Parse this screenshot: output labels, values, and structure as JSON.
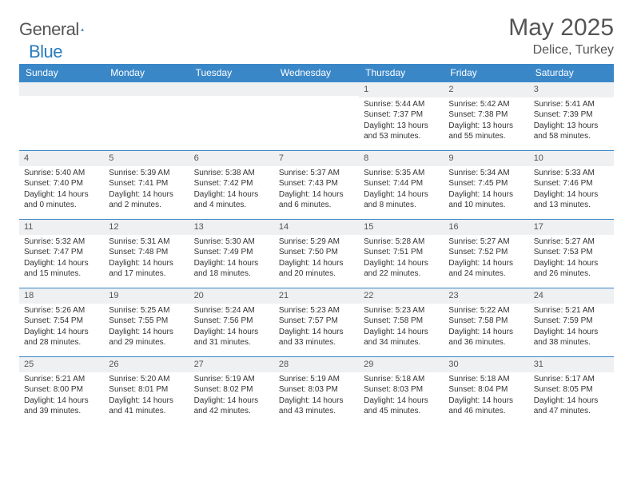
{
  "logo": {
    "text1": "General",
    "text2": "Blue"
  },
  "title": "May 2025",
  "location": "Delice, Turkey",
  "colors": {
    "header_bg": "#3a87c8",
    "header_text": "#ffffff",
    "daynum_bg": "#eef0f2",
    "border": "#3a87c8",
    "body_text": "#333333",
    "title_text": "#555555"
  },
  "typography": {
    "base_fontsize": 10,
    "title_fontsize": 30,
    "header_fontsize": 12
  },
  "weekdays": [
    "Sunday",
    "Monday",
    "Tuesday",
    "Wednesday",
    "Thursday",
    "Friday",
    "Saturday"
  ],
  "weeks": [
    [
      null,
      null,
      null,
      null,
      {
        "n": "1",
        "sr": "5:44 AM",
        "ss": "7:37 PM",
        "dl": "13 hours and 53 minutes."
      },
      {
        "n": "2",
        "sr": "5:42 AM",
        "ss": "7:38 PM",
        "dl": "13 hours and 55 minutes."
      },
      {
        "n": "3",
        "sr": "5:41 AM",
        "ss": "7:39 PM",
        "dl": "13 hours and 58 minutes."
      }
    ],
    [
      {
        "n": "4",
        "sr": "5:40 AM",
        "ss": "7:40 PM",
        "dl": "14 hours and 0 minutes."
      },
      {
        "n": "5",
        "sr": "5:39 AM",
        "ss": "7:41 PM",
        "dl": "14 hours and 2 minutes."
      },
      {
        "n": "6",
        "sr": "5:38 AM",
        "ss": "7:42 PM",
        "dl": "14 hours and 4 minutes."
      },
      {
        "n": "7",
        "sr": "5:37 AM",
        "ss": "7:43 PM",
        "dl": "14 hours and 6 minutes."
      },
      {
        "n": "8",
        "sr": "5:35 AM",
        "ss": "7:44 PM",
        "dl": "14 hours and 8 minutes."
      },
      {
        "n": "9",
        "sr": "5:34 AM",
        "ss": "7:45 PM",
        "dl": "14 hours and 10 minutes."
      },
      {
        "n": "10",
        "sr": "5:33 AM",
        "ss": "7:46 PM",
        "dl": "14 hours and 13 minutes."
      }
    ],
    [
      {
        "n": "11",
        "sr": "5:32 AM",
        "ss": "7:47 PM",
        "dl": "14 hours and 15 minutes."
      },
      {
        "n": "12",
        "sr": "5:31 AM",
        "ss": "7:48 PM",
        "dl": "14 hours and 17 minutes."
      },
      {
        "n": "13",
        "sr": "5:30 AM",
        "ss": "7:49 PM",
        "dl": "14 hours and 18 minutes."
      },
      {
        "n": "14",
        "sr": "5:29 AM",
        "ss": "7:50 PM",
        "dl": "14 hours and 20 minutes."
      },
      {
        "n": "15",
        "sr": "5:28 AM",
        "ss": "7:51 PM",
        "dl": "14 hours and 22 minutes."
      },
      {
        "n": "16",
        "sr": "5:27 AM",
        "ss": "7:52 PM",
        "dl": "14 hours and 24 minutes."
      },
      {
        "n": "17",
        "sr": "5:27 AM",
        "ss": "7:53 PM",
        "dl": "14 hours and 26 minutes."
      }
    ],
    [
      {
        "n": "18",
        "sr": "5:26 AM",
        "ss": "7:54 PM",
        "dl": "14 hours and 28 minutes."
      },
      {
        "n": "19",
        "sr": "5:25 AM",
        "ss": "7:55 PM",
        "dl": "14 hours and 29 minutes."
      },
      {
        "n": "20",
        "sr": "5:24 AM",
        "ss": "7:56 PM",
        "dl": "14 hours and 31 minutes."
      },
      {
        "n": "21",
        "sr": "5:23 AM",
        "ss": "7:57 PM",
        "dl": "14 hours and 33 minutes."
      },
      {
        "n": "22",
        "sr": "5:23 AM",
        "ss": "7:58 PM",
        "dl": "14 hours and 34 minutes."
      },
      {
        "n": "23",
        "sr": "5:22 AM",
        "ss": "7:58 PM",
        "dl": "14 hours and 36 minutes."
      },
      {
        "n": "24",
        "sr": "5:21 AM",
        "ss": "7:59 PM",
        "dl": "14 hours and 38 minutes."
      }
    ],
    [
      {
        "n": "25",
        "sr": "5:21 AM",
        "ss": "8:00 PM",
        "dl": "14 hours and 39 minutes."
      },
      {
        "n": "26",
        "sr": "5:20 AM",
        "ss": "8:01 PM",
        "dl": "14 hours and 41 minutes."
      },
      {
        "n": "27",
        "sr": "5:19 AM",
        "ss": "8:02 PM",
        "dl": "14 hours and 42 minutes."
      },
      {
        "n": "28",
        "sr": "5:19 AM",
        "ss": "8:03 PM",
        "dl": "14 hours and 43 minutes."
      },
      {
        "n": "29",
        "sr": "5:18 AM",
        "ss": "8:03 PM",
        "dl": "14 hours and 45 minutes."
      },
      {
        "n": "30",
        "sr": "5:18 AM",
        "ss": "8:04 PM",
        "dl": "14 hours and 46 minutes."
      },
      {
        "n": "31",
        "sr": "5:17 AM",
        "ss": "8:05 PM",
        "dl": "14 hours and 47 minutes."
      }
    ]
  ],
  "labels": {
    "sunrise": "Sunrise:",
    "sunset": "Sunset:",
    "daylight": "Daylight:"
  }
}
